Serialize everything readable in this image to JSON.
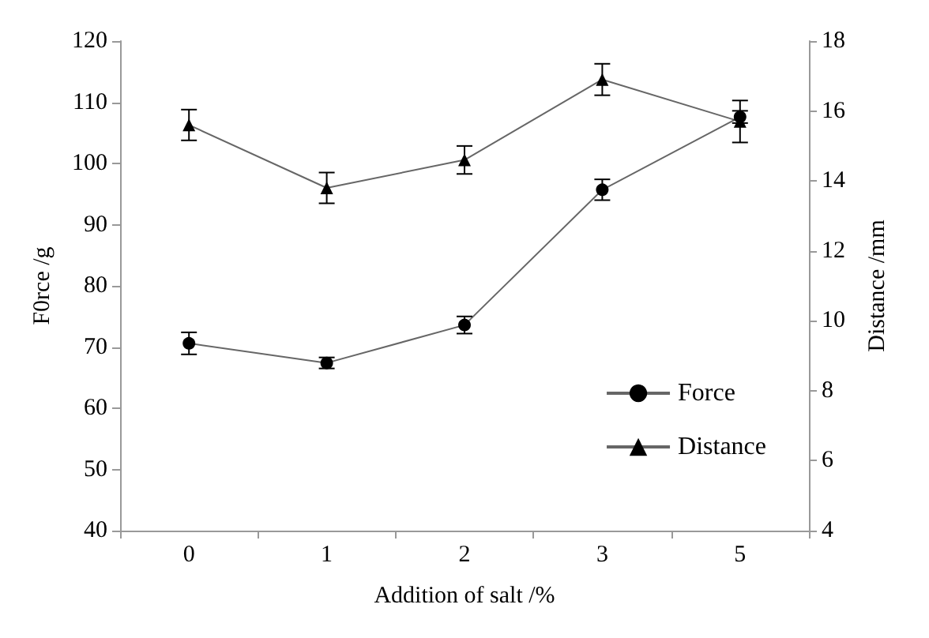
{
  "chart_data": {
    "type": "line",
    "xlabel": "Addition of salt /%",
    "ylabel": "F0rce /g",
    "y2label": "Distance /mm",
    "categories": [
      "0",
      "1",
      "2",
      "3",
      "5"
    ],
    "series": [
      {
        "name": "Force",
        "color": "#000000",
        "marker": "circle",
        "values": [
          70.6,
          67.4,
          73.6,
          95.7,
          107.6
        ],
        "errors": [
          1.8,
          0.9,
          1.4,
          1.7,
          1.0
        ]
      },
      {
        "name": "Distance",
        "color": "#000000",
        "marker": "triangle",
        "axis": "y2",
        "values": [
          15.6,
          13.8,
          14.6,
          16.9,
          15.7
        ],
        "errors": [
          0.44,
          0.44,
          0.4,
          0.45,
          0.6
        ]
      }
    ],
    "ylim": [
      40,
      120
    ],
    "yticks": [
      40,
      50,
      60,
      70,
      80,
      90,
      100,
      110,
      120
    ],
    "y2lim": [
      4,
      18
    ],
    "y2ticks": [
      4,
      6,
      8,
      10,
      12,
      14,
      16,
      18
    ],
    "grid": false,
    "legend": "bottom right"
  }
}
